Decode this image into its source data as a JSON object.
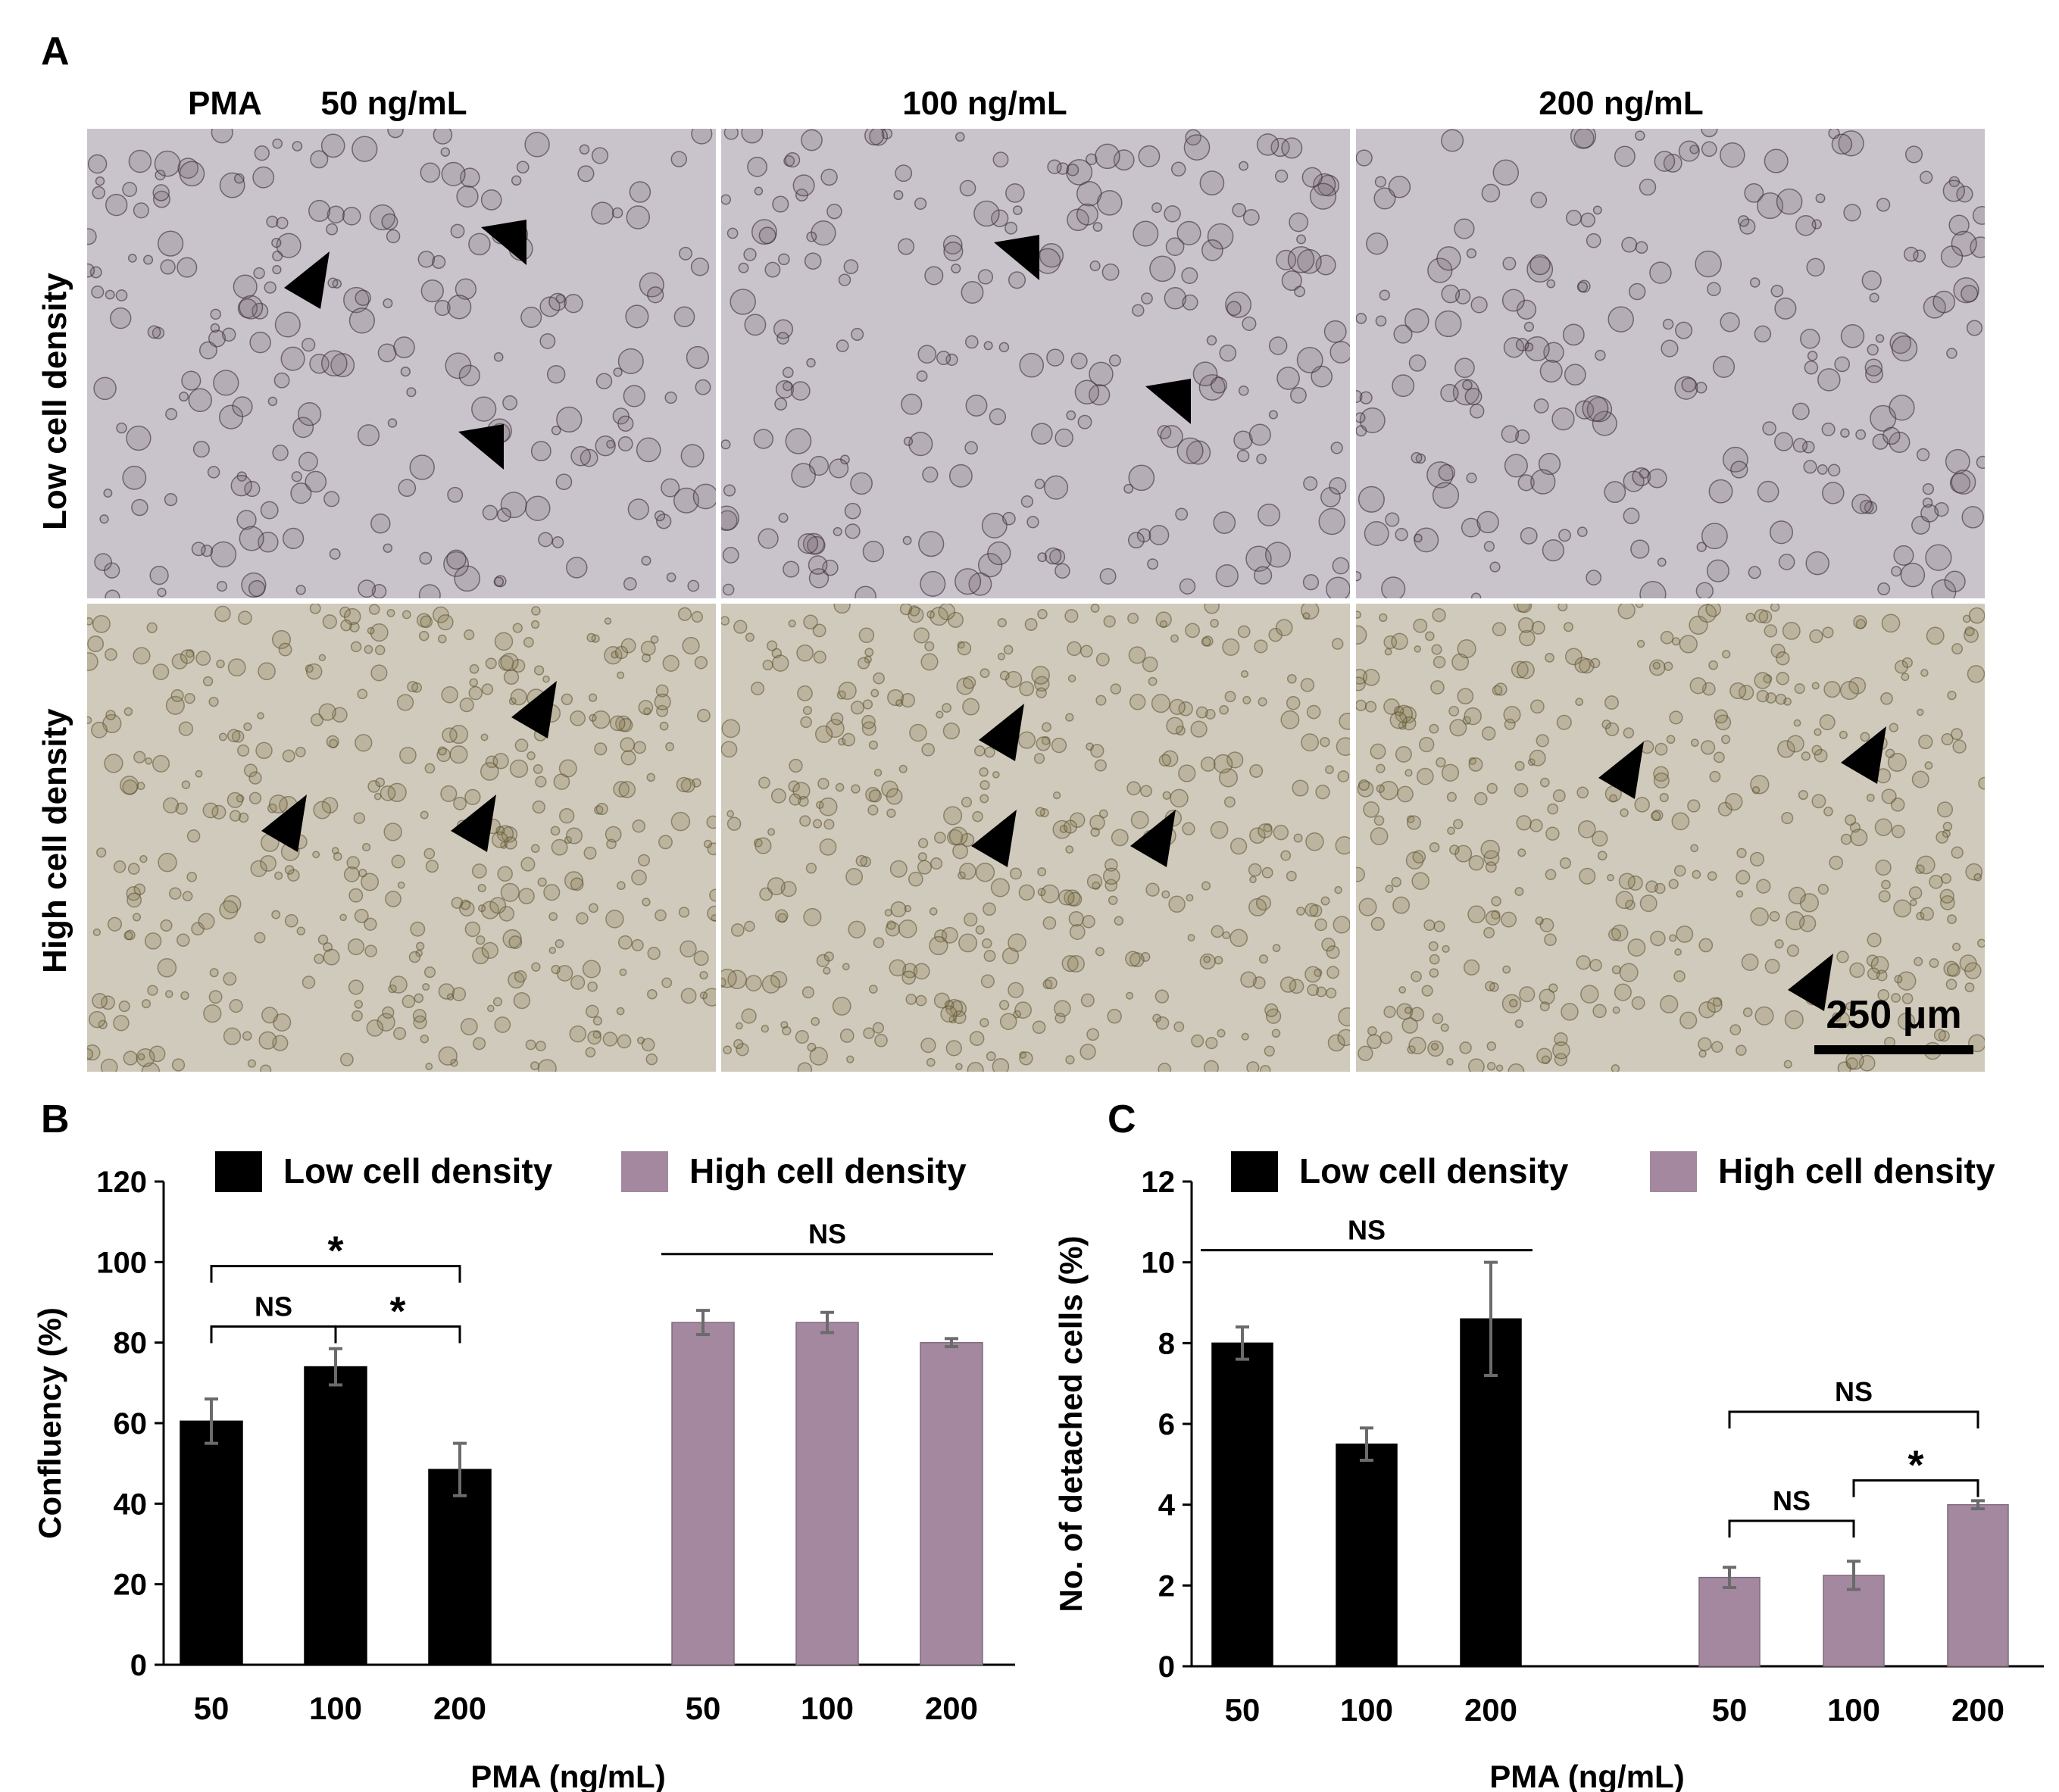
{
  "panel_a": {
    "letter": "A",
    "pma_label": "PMA",
    "columns": [
      "50 ng/mL",
      "100 ng/mL",
      "200 ng/mL"
    ],
    "rows": [
      "Low cell density",
      "High cell density"
    ],
    "scale_bar": "250 μm",
    "image_tone": {
      "low": "#c9c4cc",
      "high": "#cfcabb"
    }
  },
  "panel_b_letter": "B",
  "panel_c_letter": "C",
  "chart_data": [
    {
      "type": "bar",
      "panel": "B",
      "xlabel": "PMA (ng/mL)",
      "ylabel": "Confluency (%)",
      "ylim": [
        0,
        120
      ],
      "yticks": [
        0,
        20,
        40,
        60,
        80,
        100,
        120
      ],
      "categories": [
        "50",
        "100",
        "200"
      ],
      "legend_position": "top",
      "series": [
        {
          "name": "Low cell density",
          "color": "#000000",
          "values": [
            60.5,
            74,
            48.5
          ],
          "errors": [
            5.5,
            4.5,
            6.5
          ]
        },
        {
          "name": "High cell density",
          "color": "#a3889f",
          "values": [
            85,
            85,
            80
          ],
          "errors": [
            3,
            2.5,
            1
          ]
        }
      ],
      "annotations": [
        {
          "label": "*",
          "group": 0,
          "from": 0,
          "to": 2,
          "y": 99
        },
        {
          "label": "NS",
          "group": 0,
          "from": 0,
          "to": 1,
          "y": 84
        },
        {
          "label": "*",
          "group": 0,
          "from": 1,
          "to": 2,
          "y": 84
        },
        {
          "label": "NS",
          "group": 1,
          "from": 0,
          "to": 2,
          "y": 102,
          "style": "line"
        }
      ]
    },
    {
      "type": "bar",
      "panel": "C",
      "xlabel": "PMA (ng/mL)",
      "ylabel": "No. of detached cells (%)",
      "ylim": [
        0,
        12
      ],
      "yticks": [
        0,
        2,
        4,
        6,
        8,
        10,
        12
      ],
      "categories": [
        "50",
        "100",
        "200"
      ],
      "legend_position": "top",
      "series": [
        {
          "name": "Low cell density",
          "color": "#000000",
          "values": [
            8,
            5.5,
            8.6
          ],
          "errors": [
            0.4,
            0.4,
            1.4
          ]
        },
        {
          "name": "High cell density",
          "color": "#a3889f",
          "values": [
            2.2,
            2.25,
            4
          ],
          "errors": [
            0.25,
            0.35,
            0.1
          ]
        }
      ],
      "annotations": [
        {
          "label": "NS",
          "group": 0,
          "from": 0,
          "to": 2,
          "y": 10.3,
          "style": "line"
        },
        {
          "label": "NS",
          "group": 1,
          "from": 0,
          "to": 2,
          "y": 6.3
        },
        {
          "label": "*",
          "group": 1,
          "from": 1,
          "to": 2,
          "y": 4.6
        },
        {
          "label": "NS",
          "group": 1,
          "from": 0,
          "to": 1,
          "y": 3.6
        }
      ]
    }
  ]
}
